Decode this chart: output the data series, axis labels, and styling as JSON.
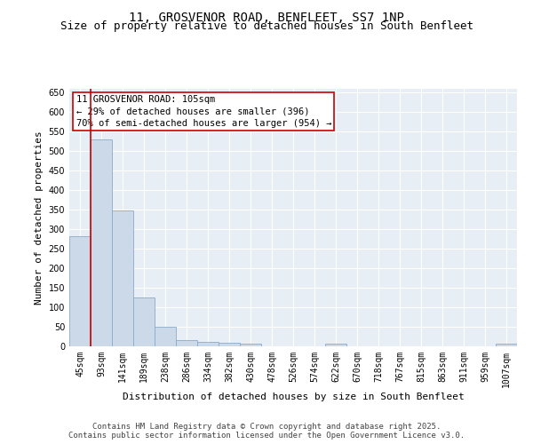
{
  "title_line1": "11, GROSVENOR ROAD, BENFLEET, SS7 1NP",
  "title_line2": "Size of property relative to detached houses in South Benfleet",
  "xlabel": "Distribution of detached houses by size in South Benfleet",
  "ylabel": "Number of detached properties",
  "bar_color": "#ccd9e8",
  "bar_edge_color": "#8aacc8",
  "categories": [
    "45sqm",
    "93sqm",
    "141sqm",
    "189sqm",
    "238sqm",
    "286sqm",
    "334sqm",
    "382sqm",
    "430sqm",
    "478sqm",
    "526sqm",
    "574sqm",
    "622sqm",
    "670sqm",
    "718sqm",
    "767sqm",
    "815sqm",
    "863sqm",
    "911sqm",
    "959sqm",
    "1007sqm"
  ],
  "values": [
    283,
    530,
    348,
    125,
    50,
    17,
    11,
    10,
    7,
    0,
    0,
    0,
    7,
    0,
    0,
    0,
    0,
    0,
    0,
    0,
    6
  ],
  "ylim": [
    0,
    660
  ],
  "yticks": [
    0,
    50,
    100,
    150,
    200,
    250,
    300,
    350,
    400,
    450,
    500,
    550,
    600,
    650
  ],
  "annotation_text": "11 GROSVENOR ROAD: 105sqm\n← 29% of detached houses are smaller (396)\n70% of semi-detached houses are larger (954) →",
  "background_color": "#e8eef5",
  "footer_text": "Contains HM Land Registry data © Crown copyright and database right 2025.\nContains public sector information licensed under the Open Government Licence v3.0.",
  "vline_x": 1.5,
  "grid_color": "#ffffff",
  "title_fontsize": 10,
  "subtitle_fontsize": 9,
  "axis_label_fontsize": 8,
  "tick_fontsize": 7,
  "annotation_fontsize": 7.5,
  "footer_fontsize": 6.5
}
